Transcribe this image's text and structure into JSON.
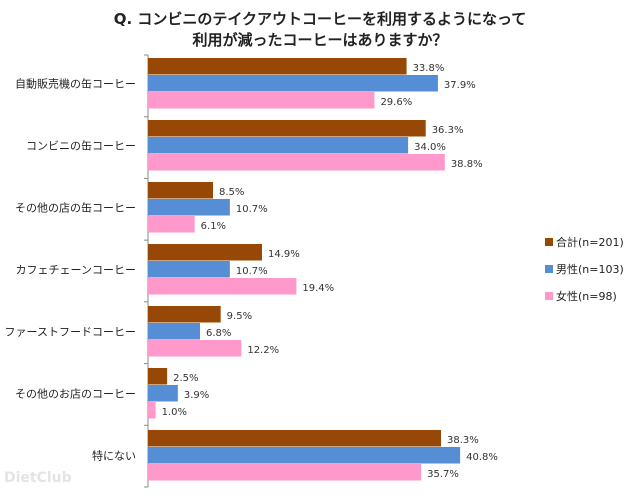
{
  "chart_data": {
    "type": "bar",
    "orientation": "horizontal",
    "title": [
      "Q. コンビニのテイクアウトコーヒーを利用するようになって",
      "利用が減ったコーヒーはありますか？"
    ],
    "categories": [
      "自動販売機の缶コーヒー",
      "コンビニの缶コーヒー",
      "その他の店の缶コーヒー",
      "カフェチェーンコーヒー",
      "ファーストフードコーヒー",
      "その他のお店のコーヒー",
      "特にない"
    ],
    "series": [
      {
        "name": "合計(n=201)",
        "color": "#974806",
        "values": [
          33.8,
          36.3,
          8.5,
          14.9,
          9.5,
          2.5,
          38.3
        ]
      },
      {
        "name": "男性(n=103)",
        "color": "#558ed5",
        "values": [
          37.9,
          34.0,
          10.7,
          10.7,
          6.8,
          3.9,
          40.8
        ]
      },
      {
        "name": "女性(n=98)",
        "color": "#ff99cc",
        "values": [
          29.6,
          38.8,
          6.1,
          19.4,
          12.2,
          1.0,
          35.7
        ]
      }
    ],
    "value_suffix": "%",
    "xlim": [
      0,
      45
    ],
    "grid": false,
    "legend": "right"
  },
  "watermark": "DietClub"
}
